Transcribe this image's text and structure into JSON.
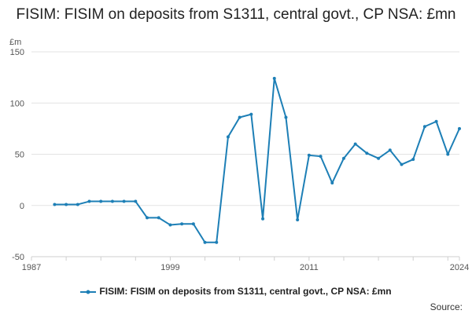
{
  "chart_data": {
    "type": "line",
    "title": "FISIM: FISIM on deposits from S1311, central govt., CP NSA: £mn",
    "ylabel": "£m",
    "xlabel": "",
    "ylim": [
      -50,
      150
    ],
    "yticks": [
      -50,
      0,
      50,
      100,
      150
    ],
    "xlim": [
      1987,
      2024
    ],
    "xticks": [
      1987,
      1999,
      2011,
      2024
    ],
    "grid": true,
    "legend_position": "bottom",
    "color": "#1d7fb6",
    "series": [
      {
        "name": "FISIM: FISIM on deposits from S1311, central govt., CP NSA: £mn",
        "x": [
          1989,
          1990,
          1991,
          1992,
          1993,
          1994,
          1995,
          1996,
          1997,
          1998,
          1999,
          2000,
          2001,
          2002,
          2003,
          2004,
          2005,
          2006,
          2007,
          2008,
          2009,
          2010,
          2011,
          2012,
          2013,
          2014,
          2015,
          2016,
          2017,
          2018,
          2019,
          2020,
          2021,
          2022,
          2023,
          2024
        ],
        "values": [
          1,
          1,
          1,
          4,
          4,
          4,
          4,
          4,
          -12,
          -12,
          -19,
          -18,
          -18,
          -36,
          -36,
          67,
          86,
          89,
          -13,
          124,
          86,
          -14,
          49,
          48,
          22,
          46,
          60,
          51,
          46,
          54,
          40,
          45,
          77,
          82,
          50,
          75
        ]
      }
    ]
  },
  "source_label": "Source:"
}
